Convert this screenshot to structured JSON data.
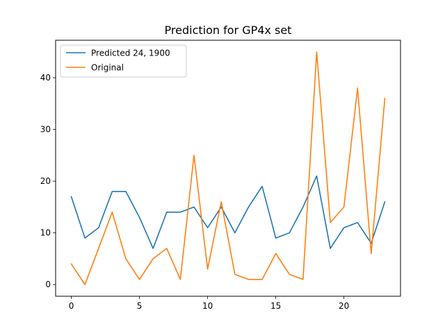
{
  "chart_data": {
    "type": "line",
    "title": "Prediction for GP4x set",
    "xlabel": "",
    "ylabel": "",
    "xlim": [
      -1.15,
      24.15
    ],
    "ylim": [
      -2.25,
      47.25
    ],
    "xticks": [
      0,
      5,
      10,
      15,
      20
    ],
    "yticks": [
      0,
      10,
      20,
      30,
      40
    ],
    "grid": false,
    "legend_position": "top-left",
    "x": [
      0,
      1,
      2,
      3,
      4,
      5,
      6,
      7,
      8,
      9,
      10,
      11,
      12,
      13,
      14,
      15,
      16,
      17,
      18,
      19,
      20,
      21,
      22,
      23
    ],
    "series": [
      {
        "name": "Predicted 24, 1900",
        "color": "#1f77b4",
        "values": [
          17,
          9,
          11,
          18,
          18,
          13,
          7,
          14,
          14,
          15,
          11,
          15,
          10,
          15,
          19,
          9,
          10,
          15,
          21,
          7,
          11,
          12,
          8,
          16
        ]
      },
      {
        "name": "Original",
        "color": "#ff7f0e",
        "values": [
          4,
          0,
          7,
          14,
          5,
          1,
          5,
          7,
          1,
          25,
          3,
          16,
          2,
          1,
          1,
          6,
          2,
          1,
          45,
          12,
          15,
          38,
          6,
          36
        ]
      }
    ]
  }
}
